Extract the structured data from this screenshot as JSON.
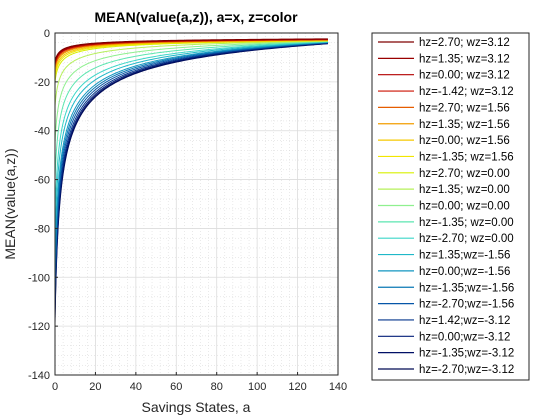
{
  "chart_data": {
    "type": "line",
    "title": "MEAN(value(a,z)), a=x, z=color",
    "xlabel": "Savings States, a",
    "ylabel": "MEAN(value(a,z))",
    "xlim": [
      0,
      140
    ],
    "ylim": [
      -140,
      0
    ],
    "xticks": [
      0,
      20,
      40,
      60,
      80,
      100,
      120,
      140
    ],
    "yticks": [
      0,
      -20,
      -40,
      -60,
      -80,
      -100,
      -120,
      -140
    ],
    "grid": true,
    "minor_grid": true,
    "legend_position": "outside-right",
    "x_max_data": 135,
    "series": [
      {
        "name": "hz=2.70; wz=3.12",
        "color": "#7f0000",
        "start": [
          0,
          -11.5
        ],
        "end": [
          135,
          -2.4
        ]
      },
      {
        "name": "hz=1.35; wz=3.12",
        "color": "#990000",
        "start": [
          0,
          -12.0
        ],
        "end": [
          135,
          -2.5
        ]
      },
      {
        "name": "hz=0.00; wz=3.12",
        "color": "#b20000",
        "start": [
          0,
          -12.5
        ],
        "end": [
          135,
          -2.6
        ]
      },
      {
        "name": "hz=-1.42; wz=3.12",
        "color": "#cc1100",
        "start": [
          0,
          -13.0
        ],
        "end": [
          135,
          -2.7
        ]
      },
      {
        "name": "hz=2.70; wz=1.56",
        "color": "#e65c00",
        "start": [
          0,
          -14.0
        ],
        "end": [
          135,
          -2.8
        ]
      },
      {
        "name": "hz=1.35; wz=1.56",
        "color": "#f29e00",
        "start": [
          0,
          -15.0
        ],
        "end": [
          135,
          -2.9
        ]
      },
      {
        "name": "hz=0.00; wz=1.56",
        "color": "#f5c800",
        "start": [
          0,
          -16.5
        ],
        "end": [
          135,
          -3.0
        ]
      },
      {
        "name": "hz=-1.35; wz=1.56",
        "color": "#f2e600",
        "start": [
          0,
          -18.0
        ],
        "end": [
          135,
          -3.1
        ]
      },
      {
        "name": "hz=2.70; wz=0.00",
        "color": "#d9f000",
        "start": [
          0,
          -20.0
        ],
        "end": [
          135,
          -3.2
        ]
      },
      {
        "name": "hz=1.35; wz=0.00",
        "color": "#b6f05a",
        "start": [
          0,
          -30.0
        ],
        "end": [
          135,
          -3.3
        ]
      },
      {
        "name": "hz=0.00; wz=0.00",
        "color": "#8ff08f",
        "start": [
          0,
          -45.0
        ],
        "end": [
          135,
          -3.4
        ]
      },
      {
        "name": "hz=-1.35; wz=0.00",
        "color": "#5ce6b0",
        "start": [
          0,
          -60.0
        ],
        "end": [
          135,
          -3.5
        ]
      },
      {
        "name": "hz=-2.70; wz=0.00",
        "color": "#3cd6c8",
        "start": [
          0,
          -75.0
        ],
        "end": [
          135,
          -3.6
        ]
      },
      {
        "name": "hz=1.35;wz=-1.56",
        "color": "#1fb8c8",
        "start": [
          0,
          -85.0
        ],
        "end": [
          135,
          -3.7
        ]
      },
      {
        "name": "hz=0.00;wz=-1.56",
        "color": "#1296c0",
        "start": [
          0,
          -95.0
        ],
        "end": [
          135,
          -3.8
        ]
      },
      {
        "name": "hz=-1.35;wz=-1.56",
        "color": "#0a78b4",
        "start": [
          0,
          -100.0
        ],
        "end": [
          135,
          -3.9
        ]
      },
      {
        "name": "hz=-2.70;wz=-1.56",
        "color": "#0656a8",
        "start": [
          0,
          -105.0
        ],
        "end": [
          135,
          -4.0
        ]
      },
      {
        "name": "hz=1.42;wz=-3.12",
        "color": "#04368c",
        "start": [
          0,
          -110.0
        ],
        "end": [
          135,
          -4.1
        ]
      },
      {
        "name": "hz=0.00;wz=-3.12",
        "color": "#021e78",
        "start": [
          0,
          -114.0
        ],
        "end": [
          135,
          -4.2
        ]
      },
      {
        "name": "hz=-1.35;wz=-3.12",
        "color": "#011066",
        "start": [
          0,
          -117.0
        ],
        "end": [
          135,
          -4.3
        ]
      },
      {
        "name": "hz=-2.70;wz=-3.12",
        "color": "#000a55",
        "start": [
          0,
          -119.0
        ],
        "end": [
          135,
          -4.4
        ]
      }
    ]
  }
}
